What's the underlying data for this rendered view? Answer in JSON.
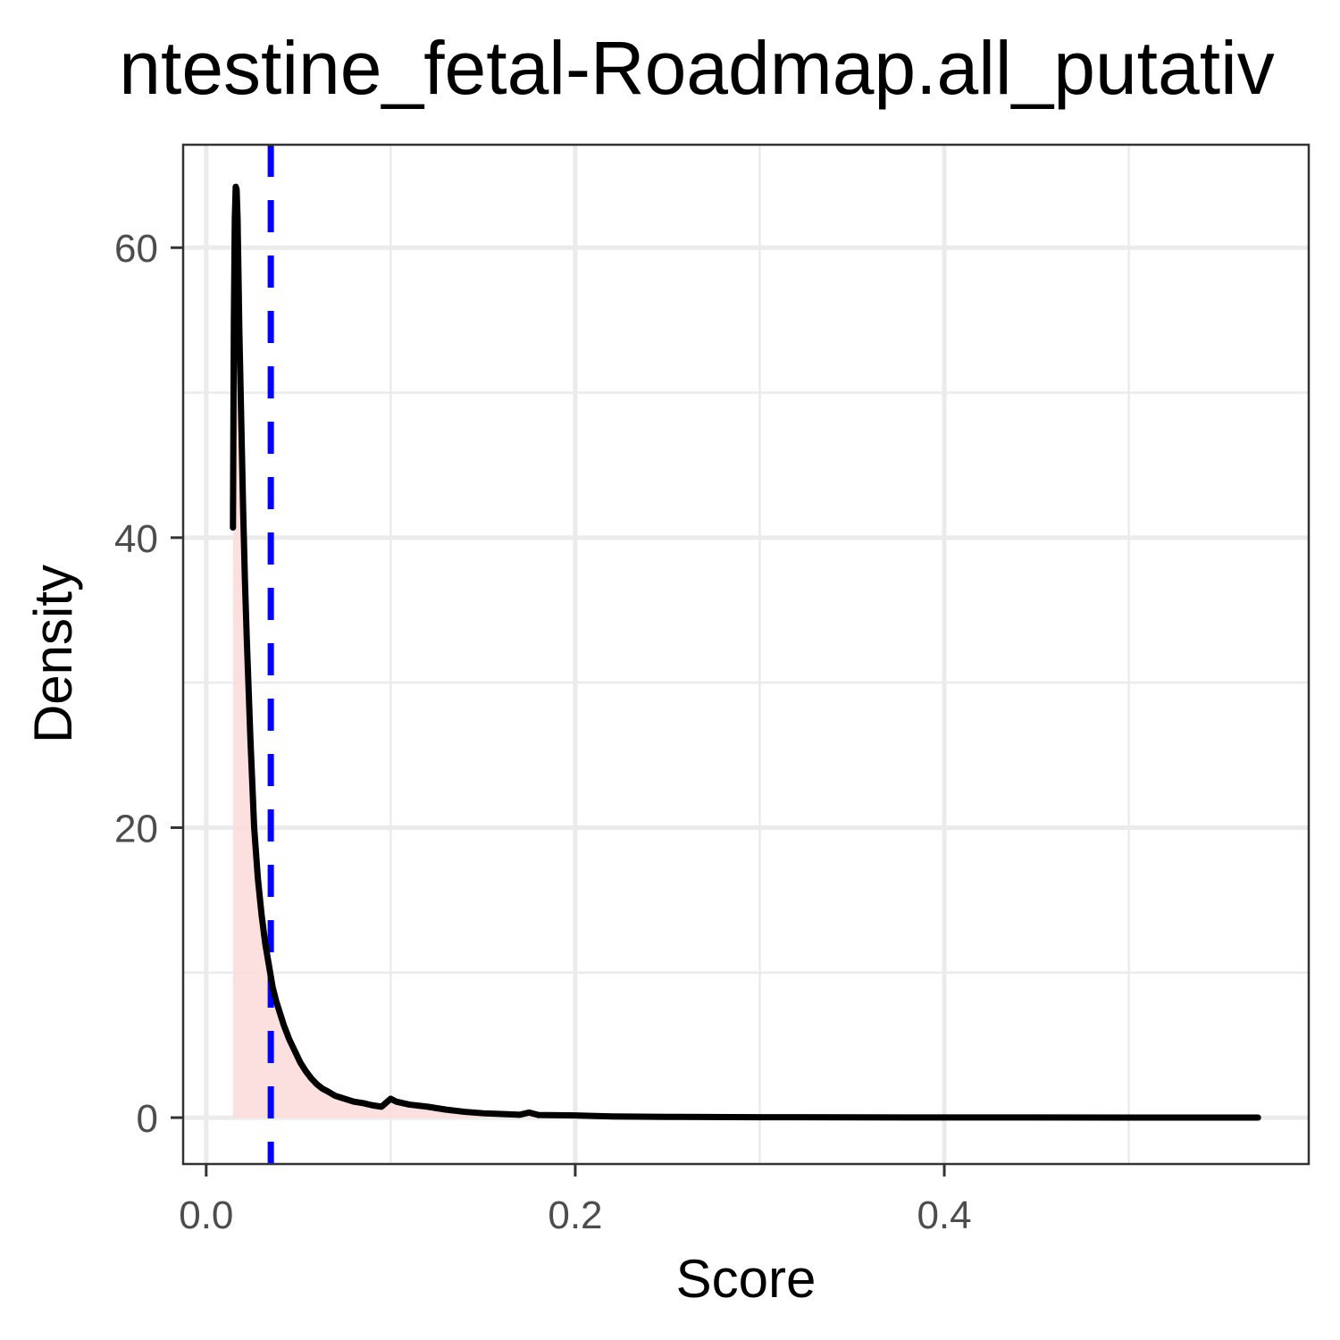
{
  "chart_data": {
    "type": "line",
    "title": "ntestine_fetal-Roadmap.all_putativ",
    "xlabel": "Score",
    "ylabel": "Density",
    "xlim": [
      -0.0125,
      0.5975
    ],
    "ylim": [
      -3.2,
      67.1
    ],
    "x_ticks": [
      {
        "value": 0.0,
        "label": "0.0"
      },
      {
        "value": 0.2,
        "label": "0.2"
      },
      {
        "value": 0.4,
        "label": "0.4"
      }
    ],
    "y_ticks": [
      {
        "value": 0,
        "label": "0"
      },
      {
        "value": 20,
        "label": "20"
      },
      {
        "value": 40,
        "label": "40"
      },
      {
        "value": 60,
        "label": "60"
      }
    ],
    "x_minor": [
      0.1,
      0.3,
      0.5
    ],
    "y_minor": [
      10,
      30,
      50
    ],
    "grid": true,
    "legend": "none",
    "colors": {
      "line": "#000000",
      "fill": "#fcdcdc",
      "threshold": "#0000ff",
      "grid": "#ebebeb",
      "panel_border": "#333333"
    },
    "threshold_x": 0.035,
    "series": [
      {
        "x": [
          0.0145,
          0.015,
          0.0155,
          0.016,
          0.0165,
          0.017,
          0.0175,
          0.018,
          0.019,
          0.02,
          0.021,
          0.022,
          0.024,
          0.026,
          0.028,
          0.03,
          0.032,
          0.034,
          0.036,
          0.038,
          0.04,
          0.042,
          0.045,
          0.048,
          0.051,
          0.054,
          0.057,
          0.06,
          0.063,
          0.066,
          0.07,
          0.075,
          0.08,
          0.085,
          0.09,
          0.095,
          0.1,
          0.103,
          0.11,
          0.12,
          0.13,
          0.14,
          0.15,
          0.16,
          0.17,
          0.175,
          0.18,
          0.2,
          0.22,
          0.25,
          0.3,
          0.35,
          0.4,
          0.45,
          0.5,
          0.57
        ],
        "y": [
          40.7,
          55,
          62,
          64.2,
          64.0,
          62,
          58,
          54,
          48,
          42,
          37,
          33,
          26,
          20,
          16.5,
          14,
          12,
          10.5,
          9,
          8,
          7.2,
          6.4,
          5.4,
          4.6,
          3.8,
          3.2,
          2.7,
          2.3,
          2.0,
          1.8,
          1.5,
          1.3,
          1.1,
          1.0,
          0.85,
          0.75,
          1.3,
          1.1,
          0.9,
          0.75,
          0.55,
          0.4,
          0.3,
          0.25,
          0.2,
          0.35,
          0.18,
          0.15,
          0.08,
          0.05,
          0.03,
          0.02,
          0.01,
          0.01,
          0.0,
          0.0
        ]
      }
    ]
  }
}
